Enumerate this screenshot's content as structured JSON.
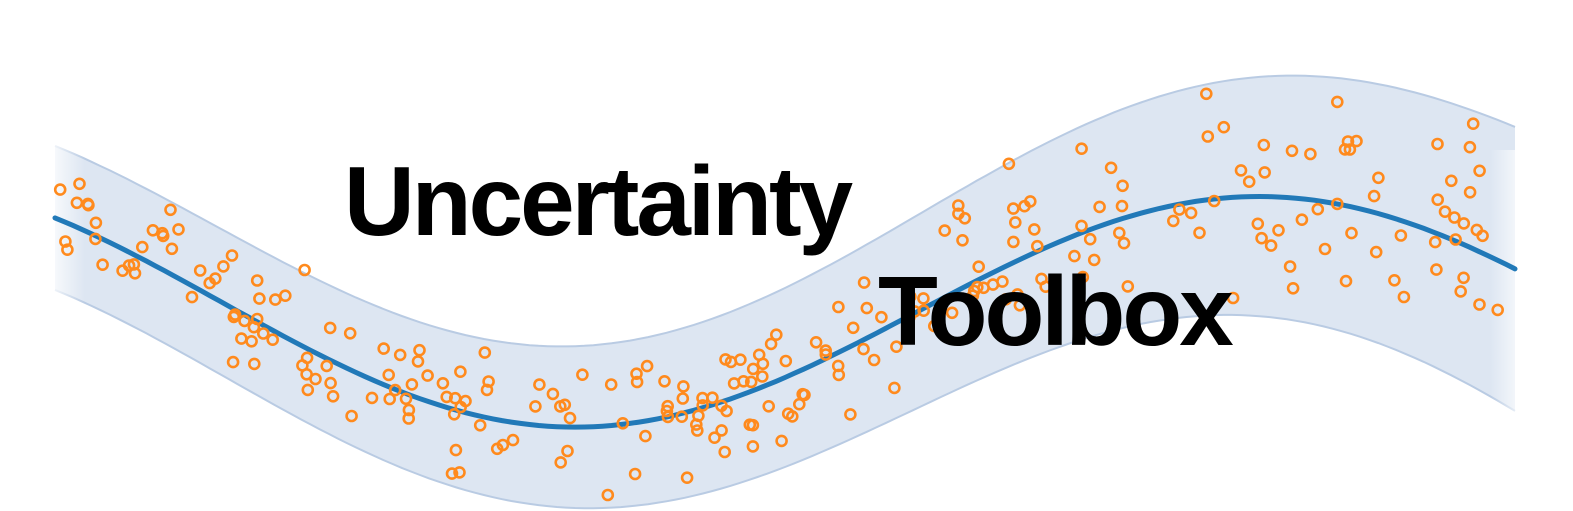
{
  "logo": {
    "title_line1": "Uncertainty",
    "title_line2": "Toolbox"
  },
  "colors": {
    "mean_line": "#2179b8",
    "band_fill": "#dde6f2",
    "band_edge": "#b9cbe3",
    "points": "#ff8a1d",
    "text": "#000000"
  },
  "graphic": {
    "type": "scatter",
    "description_elements": [
      "uncertainty-band",
      "mean-curve",
      "observation-points"
    ]
  }
}
